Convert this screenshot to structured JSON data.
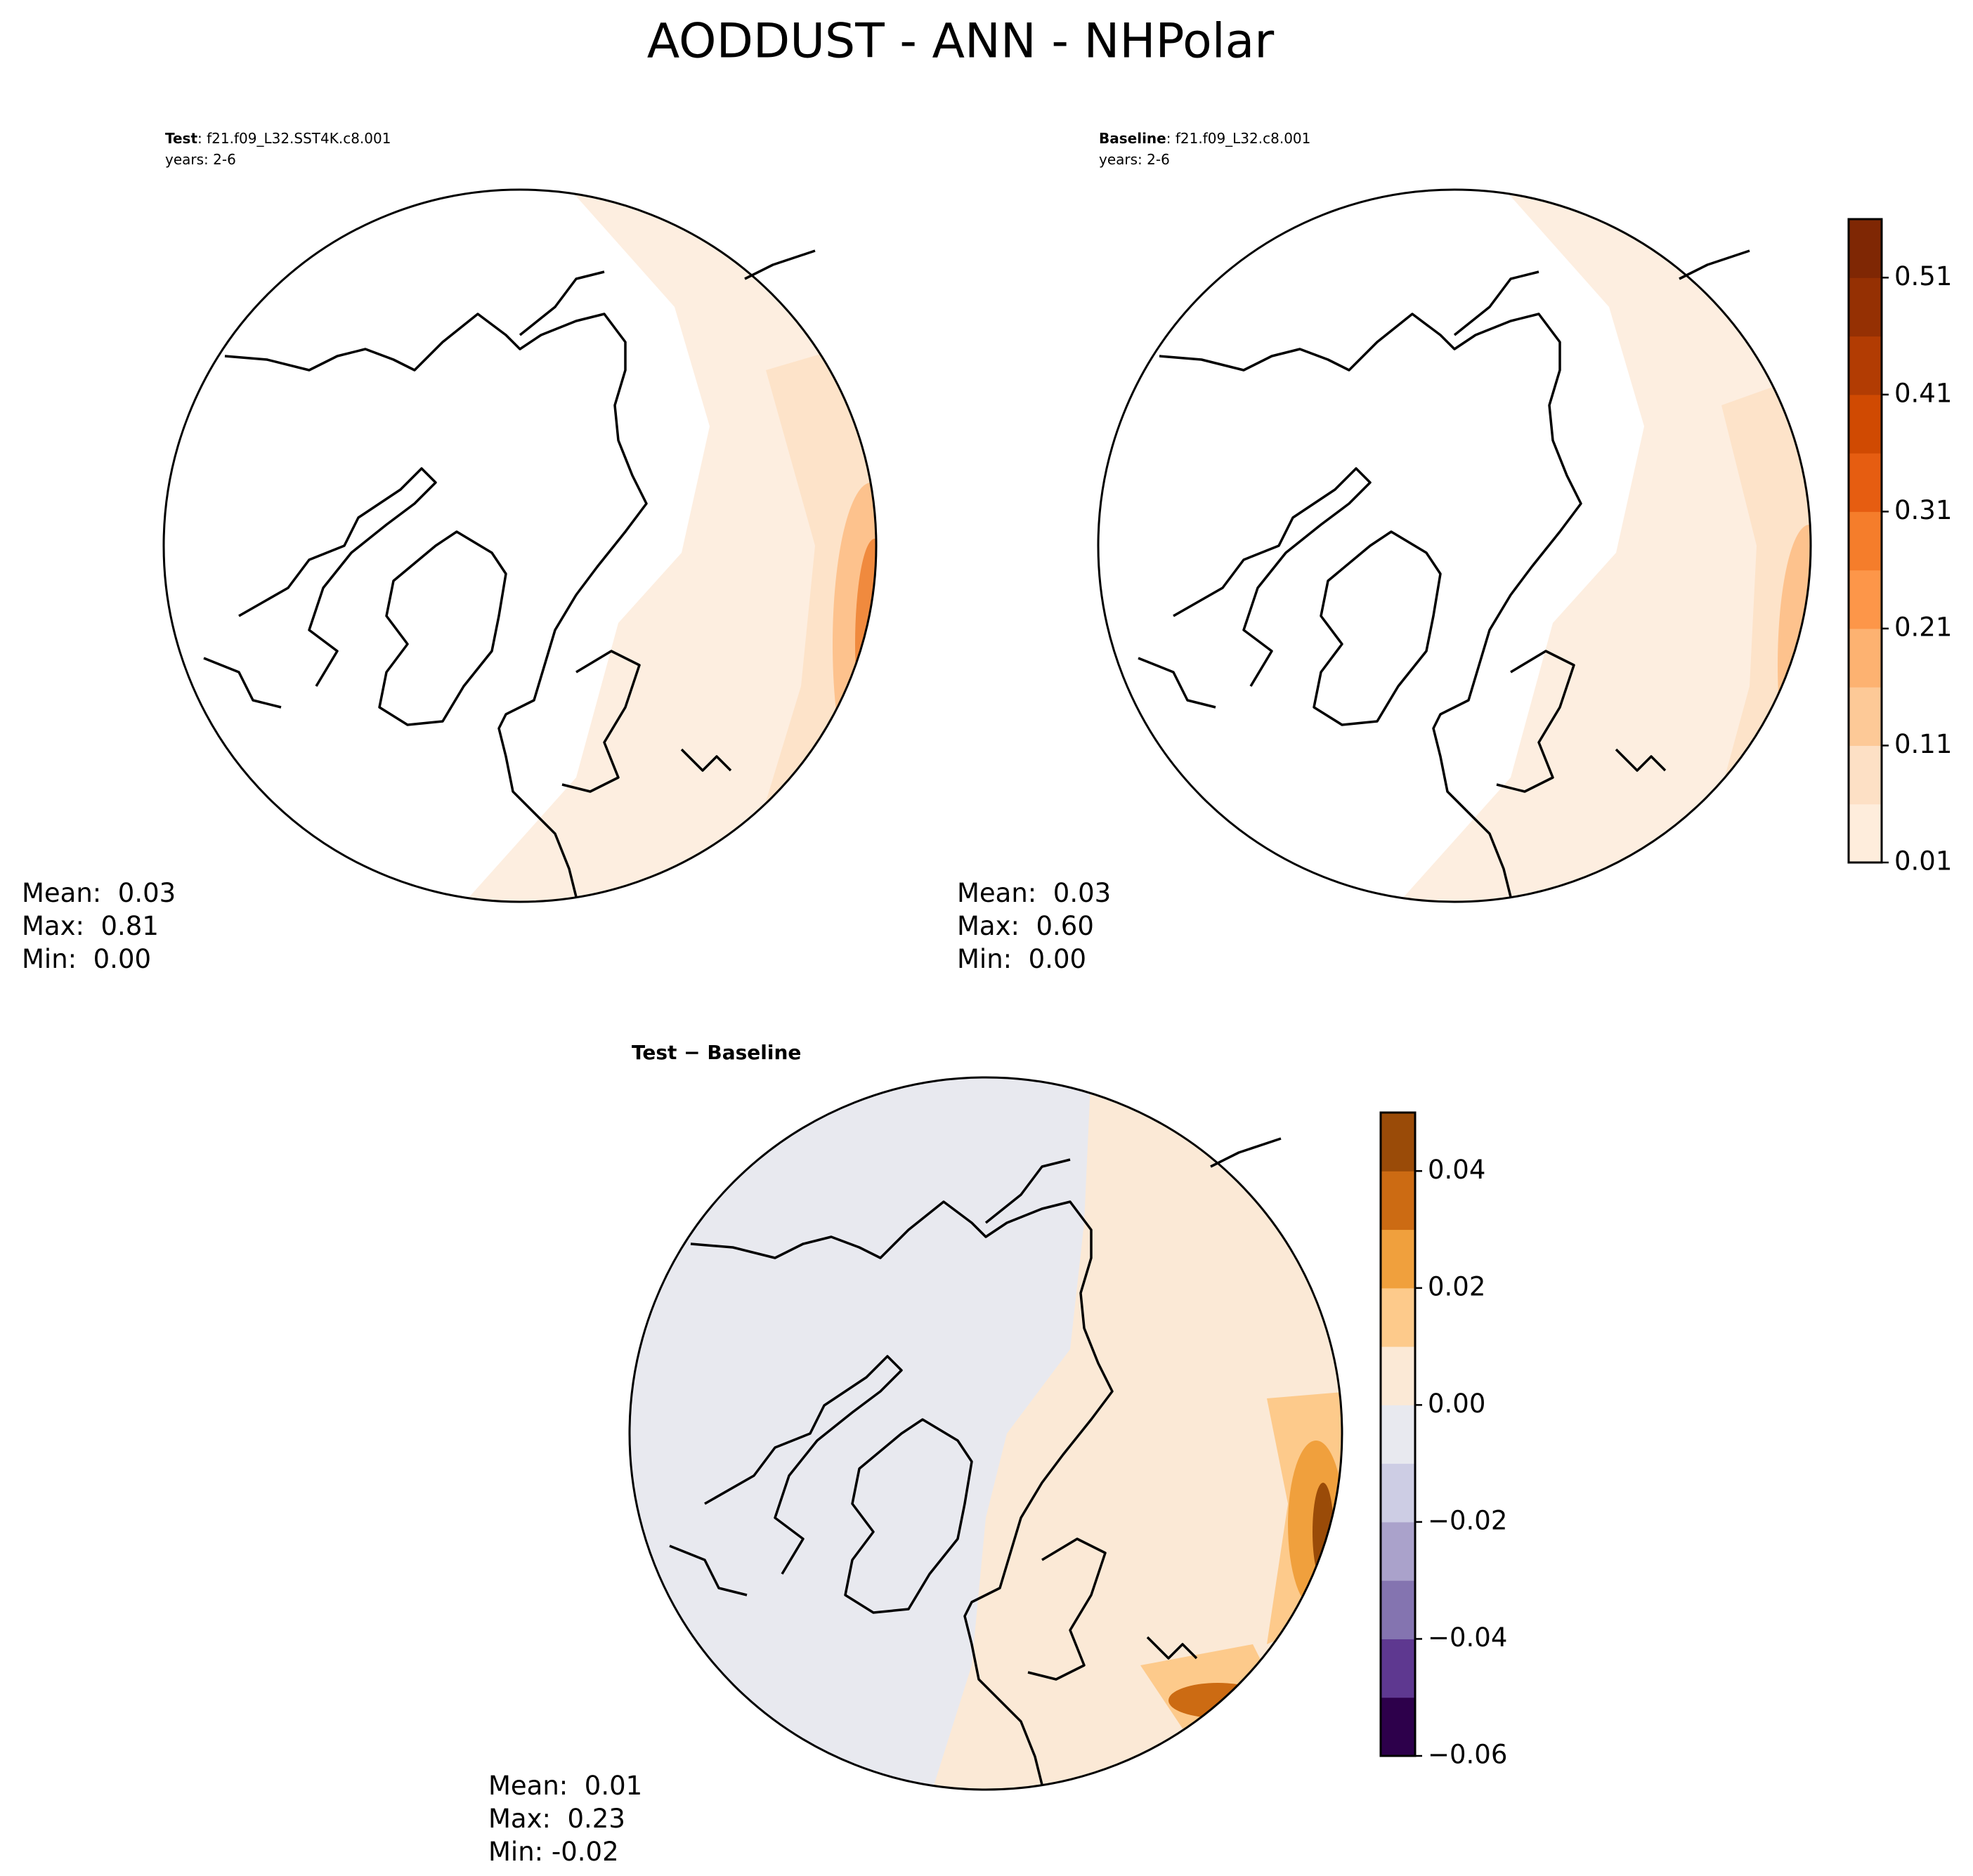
{
  "title": "AODDUST - ANN - NHPolar",
  "panels": [
    {
      "label": "Test",
      "case": ": f21.f09_L32.SST4K.c8.001",
      "years": "years: 2-6",
      "stats": [
        "Mean:  0.03",
        "Max:  0.81",
        "Min:  0.00"
      ]
    },
    {
      "label": "Baseline",
      "case": ": f21.f09_L32.c8.001",
      "years": "years: 2-6",
      "stats": [
        "Mean:  0.03",
        "Max:  0.60",
        "Min:  0.00"
      ]
    },
    {
      "label": "Test − Baseline",
      "stats": [
        "Mean:  0.01",
        "Max:  0.23",
        "Min: -0.02"
      ]
    }
  ],
  "colorbars": [
    {
      "levels": [
        0.01,
        0.06,
        0.11,
        0.16,
        0.21,
        0.26,
        0.31,
        0.36,
        0.41,
        0.46,
        0.51,
        0.56
      ],
      "colors": [
        "#feeddc",
        "#fde0c5",
        "#fdc997",
        "#fdb271",
        "#fd9649",
        "#f57d2b",
        "#e65d11",
        "#d04a02",
        "#b23c03",
        "#953003",
        "#7f2704"
      ],
      "ticks": [
        0.01,
        0.11,
        0.21,
        0.31,
        0.41,
        0.51
      ]
    },
    {
      "levels": [
        -0.06,
        -0.05,
        -0.04,
        -0.03,
        -0.02,
        -0.01,
        0,
        0.01,
        0.02,
        0.03,
        0.04,
        0.05
      ],
      "colors": [
        "#2d004b",
        "#5e3890",
        "#8474b0",
        "#aaa2cb",
        "#cdcde4",
        "#e8e9ef",
        "#fbe9d6",
        "#fdca8b",
        "#f0a03d",
        "#cc6b13",
        "#9a4b08"
      ],
      "ticks": [
        {
          "value": -0.06,
          "label": "−0.06"
        },
        {
          "value": -0.04,
          "label": "−0.04"
        },
        {
          "value": -0.02,
          "label": "−0.02"
        },
        {
          "value": 0,
          "label": "0.00"
        },
        0.02,
        0.04
      ]
    }
  ]
}
